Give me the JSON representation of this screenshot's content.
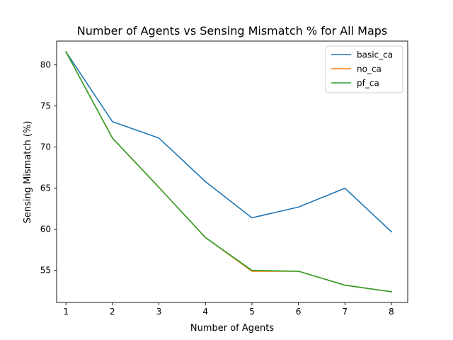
{
  "chart_data": {
    "type": "line",
    "title": "Number of Agents vs Sensing Mismatch % for All Maps",
    "xlabel": "Number of Agents",
    "ylabel": "Sensing Mismatch (%)",
    "x": [
      1,
      2,
      3,
      4,
      5,
      6,
      7,
      8
    ],
    "xlim": [
      0.8,
      8.35
    ],
    "ylim": [
      51.1,
      82.9
    ],
    "xticks": [
      1,
      2,
      3,
      4,
      5,
      6,
      7,
      8
    ],
    "yticks": [
      55,
      60,
      65,
      70,
      75,
      80
    ],
    "grid": false,
    "legend_position": "top-right",
    "series": [
      {
        "name": "basic_ca",
        "color": "#1f77b4",
        "values": [
          81.6,
          73.1,
          71.1,
          65.8,
          61.4,
          62.7,
          65.0,
          59.7
        ]
      },
      {
        "name": "no_ca",
        "color": "#ff7f0e",
        "values": [
          81.6,
          71.1,
          65.1,
          59.0,
          54.9,
          54.9,
          53.2,
          52.4
        ]
      },
      {
        "name": "pf_ca",
        "color": "#2ca02c",
        "values": [
          81.6,
          71.1,
          65.1,
          59.0,
          55.0,
          54.9,
          53.2,
          52.4
        ]
      }
    ]
  }
}
